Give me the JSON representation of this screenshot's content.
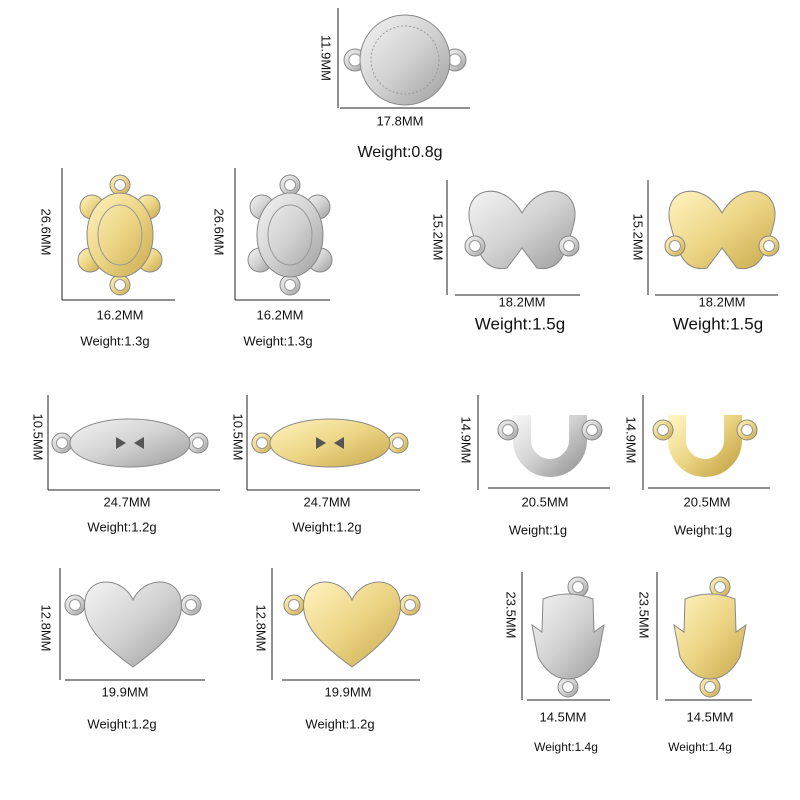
{
  "items": [
    {
      "height": "11.9MM",
      "width": "17.8MM",
      "weight": "Weight:0.8g"
    },
    {
      "height": "26.6MM",
      "width": "16.2MM",
      "weight": "Weight:1.3g"
    },
    {
      "height": "26.6MM",
      "width": "16.2MM",
      "weight": "Weight:1.3g"
    },
    {
      "height": "15.2MM",
      "width": "18.2MM",
      "weight": "Weight:1.5g"
    },
    {
      "height": "15.2MM",
      "width": "18.2MM",
      "weight": "Weight:1.5g"
    },
    {
      "height": "10.5MM",
      "width": "24.7MM",
      "weight": "Weight:1.2g"
    },
    {
      "height": "10.5MM",
      "width": "24.7MM",
      "weight": "Weight:1.2g"
    },
    {
      "height": "14.9MM",
      "width": "20.5MM",
      "weight": "Weight:1g"
    },
    {
      "height": "14.9MM",
      "width": "20.5MM",
      "weight": "Weight:1g"
    },
    {
      "height": "12.8MM",
      "width": "19.9MM",
      "weight": "Weight:1.2g"
    },
    {
      "height": "12.8MM",
      "width": "19.9MM",
      "weight": "Weight:1.2g"
    },
    {
      "height": "23.5MM",
      "width": "14.5MM",
      "weight": "Weight:1.4g"
    },
    {
      "height": "23.5MM",
      "width": "14.5MM",
      "weight": "Weight:1.4g"
    }
  ]
}
